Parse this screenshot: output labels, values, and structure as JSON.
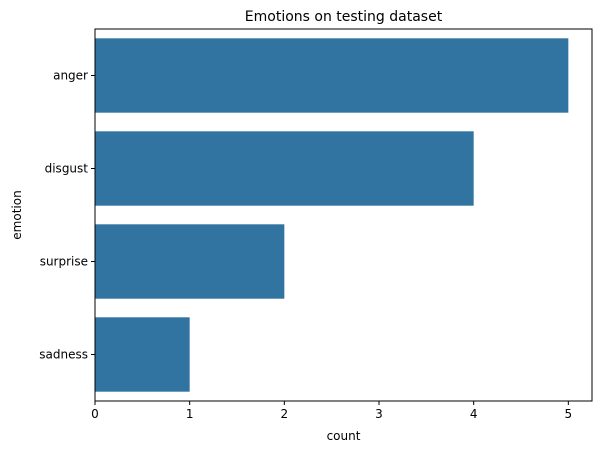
{
  "chart_data": {
    "type": "bar",
    "orientation": "horizontal",
    "title": "Emotions on testing dataset",
    "xlabel": "count",
    "ylabel": "emotion",
    "categories": [
      "anger",
      "disgust",
      "surprise",
      "sadness"
    ],
    "values": [
      5,
      4,
      2,
      1
    ],
    "xlim": [
      0,
      5.25
    ],
    "xticks": [
      0,
      1,
      2,
      3,
      4,
      5
    ],
    "grid": false,
    "bar_color": "#3274a1"
  }
}
